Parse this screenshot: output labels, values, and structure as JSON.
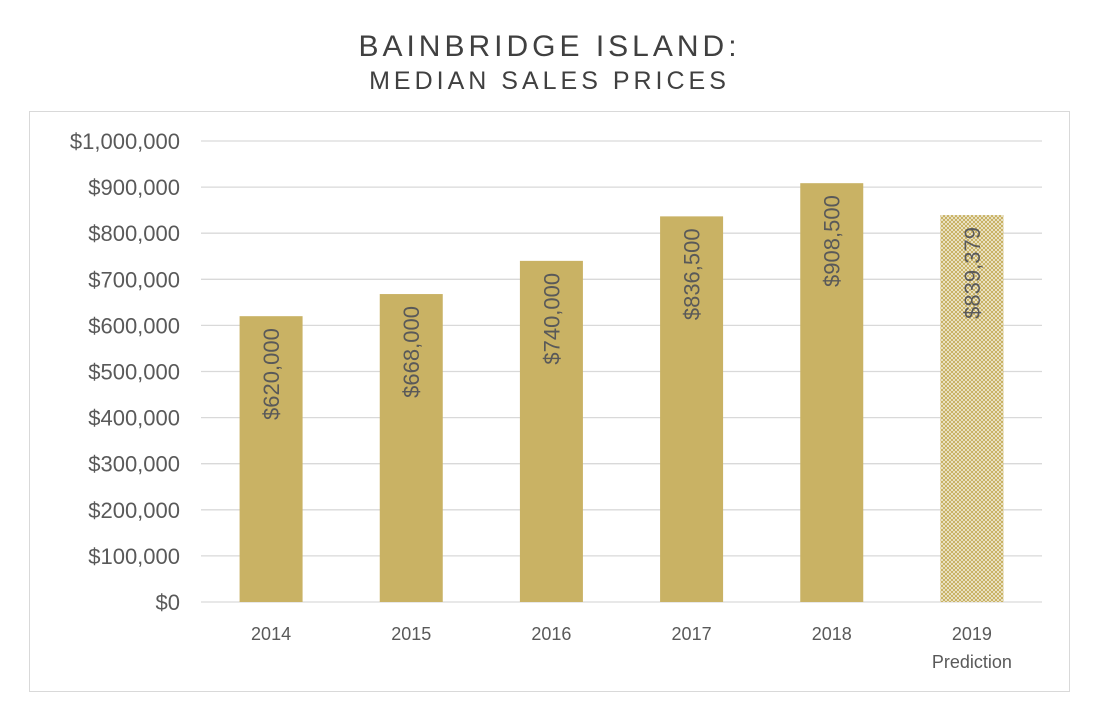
{
  "chart_data": {
    "type": "bar",
    "title": "BAINBRIDGE ISLAND:",
    "subtitle": "MEDIAN SALES PRICES",
    "xlabel": "",
    "ylabel": "",
    "categories": [
      {
        "label": "2014",
        "sublabel": ""
      },
      {
        "label": "2015",
        "sublabel": ""
      },
      {
        "label": "2016",
        "sublabel": ""
      },
      {
        "label": "2017",
        "sublabel": ""
      },
      {
        "label": "2018",
        "sublabel": ""
      },
      {
        "label": "2019",
        "sublabel": "Prediction"
      }
    ],
    "values": [
      620000,
      668000,
      740000,
      836500,
      908500,
      839379
    ],
    "data_labels": [
      "$620,000",
      "$668,000",
      "$740,000",
      "$836,500",
      "$908,500",
      "$839,379"
    ],
    "predicted": [
      false,
      false,
      false,
      false,
      false,
      true
    ],
    "ylim": [
      0,
      1000000
    ],
    "yticks": [
      0,
      100000,
      200000,
      300000,
      400000,
      500000,
      600000,
      700000,
      800000,
      900000,
      1000000
    ],
    "ytick_labels": [
      "$0",
      "$100,000",
      "$200,000",
      "$300,000",
      "$400,000",
      "$500,000",
      "$600,000",
      "$700,000",
      "$800,000",
      "$900,000",
      "$1,000,000"
    ],
    "grid": true,
    "legend": "none",
    "colors": {
      "bar": "#c9b264",
      "prediction_pattern": "#c9b264",
      "gridline": "#d9d9d9",
      "text": "#595959"
    }
  }
}
